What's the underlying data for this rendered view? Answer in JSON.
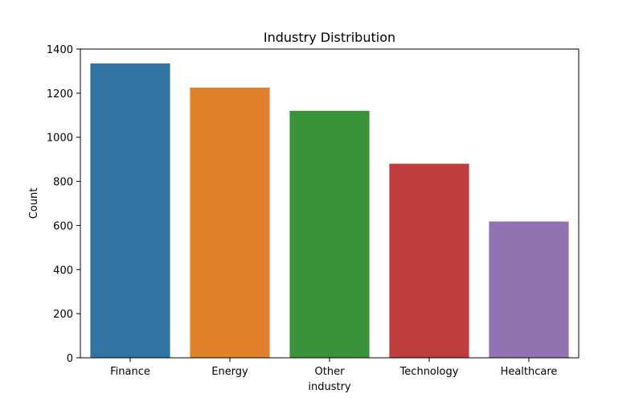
{
  "chart_data": {
    "type": "bar",
    "title": "Industry Distribution",
    "xlabel": "industry",
    "ylabel": "Count",
    "categories": [
      "Finance",
      "Energy",
      "Other",
      "Technology",
      "Healthcare"
    ],
    "values": [
      1335,
      1225,
      1120,
      880,
      618
    ],
    "colors": [
      "#3274a1",
      "#e1812c",
      "#3a923a",
      "#c03d3e",
      "#9372b2"
    ],
    "ylim": [
      0,
      1400
    ],
    "yticks": [
      0,
      200,
      400,
      600,
      800,
      1000,
      1200,
      1400
    ],
    "grid": false,
    "legend": false
  }
}
